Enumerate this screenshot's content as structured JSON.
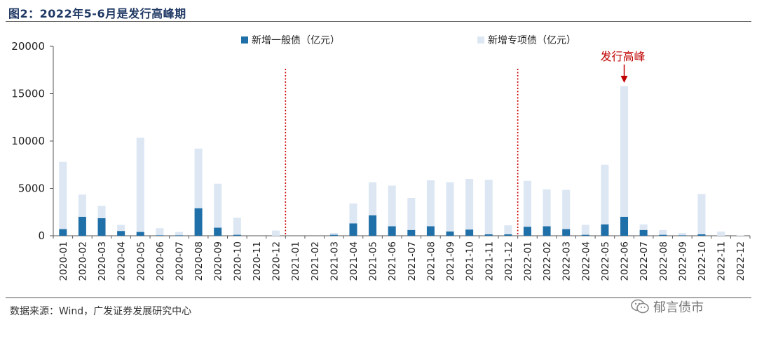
{
  "figure": {
    "title": "图2：2022年5-6月是发行高峰期",
    "source": "数据来源：Wind，广发证券发展研究中心",
    "watermark": "郁言债市",
    "watermark_icon": "wechat-icon"
  },
  "colors": {
    "general": "#1f6fa8",
    "special": "#dce7f3",
    "divider": "#cc0000",
    "annotation": "#c00000",
    "title": "#1f3864"
  },
  "chart_data": {
    "type": "bar",
    "stacked": true,
    "title": "",
    "xlabel": "",
    "ylabel": "",
    "ylim": [
      0,
      20000
    ],
    "yticks": [
      0,
      5000,
      10000,
      15000,
      20000
    ],
    "grid": false,
    "legend_position": "top",
    "categories": [
      "2020-01",
      "2020-02",
      "2020-03",
      "2020-04",
      "2020-05",
      "2020-06",
      "2020-07",
      "2020-08",
      "2020-09",
      "2020-10",
      "2020-11",
      "2020-12",
      "2021-01",
      "2021-02",
      "2021-03",
      "2021-04",
      "2021-05",
      "2021-06",
      "2021-07",
      "2021-08",
      "2021-09",
      "2021-10",
      "2021-11",
      "2021-12",
      "2022-01",
      "2022-02",
      "2022-03",
      "2022-04",
      "2022-05",
      "2022-06",
      "2022-07",
      "2022-08",
      "2022-09",
      "2022-10",
      "2022-11",
      "2022-12"
    ],
    "series": [
      {
        "name": "新增一般债（亿元）",
        "values": [
          700,
          2000,
          1850,
          500,
          400,
          50,
          50,
          2900,
          850,
          100,
          0,
          0,
          0,
          0,
          100,
          1300,
          2150,
          1000,
          600,
          1000,
          450,
          650,
          150,
          150,
          950,
          1000,
          700,
          100,
          1200,
          2000,
          600,
          100,
          50,
          150,
          0,
          0
        ]
      },
      {
        "name": "新增专项债（亿元）",
        "values": [
          7100,
          2350,
          1300,
          650,
          9950,
          750,
          350,
          6300,
          4650,
          1800,
          0,
          550,
          0,
          0,
          200,
          2100,
          3500,
          4300,
          3400,
          4850,
          5200,
          5350,
          5750,
          950,
          4850,
          3900,
          4150,
          1050,
          6300,
          13800,
          600,
          500,
          250,
          4250,
          450,
          50
        ]
      }
    ],
    "dividers_after": [
      "2020-12",
      "2021-12"
    ],
    "annotations": [
      {
        "category": "2022-06",
        "text": "发行高峰"
      }
    ]
  }
}
